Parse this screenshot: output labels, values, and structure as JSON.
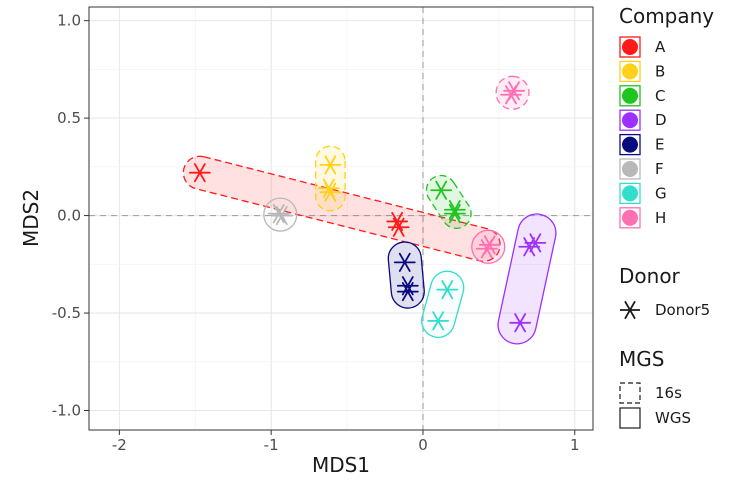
{
  "chart_data": {
    "type": "scatter",
    "title": "",
    "xlabel": "MDS1",
    "ylabel": "MDS2",
    "xlim": [
      -2.2,
      1.12
    ],
    "ylim": [
      -1.1,
      1.07
    ],
    "xticks": [
      -2,
      -1,
      0,
      1
    ],
    "xtick_labels": [
      "-2",
      "-1",
      "0",
      "1"
    ],
    "yticks": [
      -1.0,
      -0.5,
      0.0,
      0.5,
      1.0
    ],
    "ytick_labels": [
      "-1.0",
      "-0.5",
      "0.0",
      "0.5",
      "1.0"
    ],
    "grid": true,
    "reference_lines": {
      "x": 0,
      "y": 0
    },
    "marker": "asterisk",
    "series": [
      {
        "name": "A",
        "color": "#FF1A1A",
        "points": [
          {
            "x": -1.47,
            "y": 0.22,
            "mgs": "16s"
          },
          {
            "x": -0.17,
            "y": -0.03,
            "mgs": "16s"
          },
          {
            "x": -0.16,
            "y": -0.06,
            "mgs": "WGS"
          }
        ]
      },
      {
        "name": "B",
        "color": "#FFD11A",
        "points": [
          {
            "x": -0.61,
            "y": 0.26,
            "mgs": "16s"
          },
          {
            "x": -0.62,
            "y": 0.14,
            "mgs": "16s"
          },
          {
            "x": -0.61,
            "y": 0.12,
            "mgs": "WGS"
          }
        ]
      },
      {
        "name": "C",
        "color": "#1FC41F",
        "points": [
          {
            "x": 0.12,
            "y": 0.13,
            "mgs": "16s"
          },
          {
            "x": 0.21,
            "y": 0.03,
            "mgs": "16s"
          },
          {
            "x": 0.21,
            "y": 0.01,
            "mgs": "WGS"
          }
        ]
      },
      {
        "name": "D",
        "color": "#9B30FF",
        "points": [
          {
            "x": 0.74,
            "y": -0.14,
            "mgs": "WGS"
          },
          {
            "x": 0.7,
            "y": -0.16,
            "mgs": "WGS"
          },
          {
            "x": 0.64,
            "y": -0.55,
            "mgs": "WGS"
          }
        ]
      },
      {
        "name": "E",
        "color": "#0A0A80",
        "points": [
          {
            "x": -0.12,
            "y": -0.24,
            "mgs": "WGS"
          },
          {
            "x": -0.1,
            "y": -0.36,
            "mgs": "WGS"
          },
          {
            "x": -0.1,
            "y": -0.39,
            "mgs": "WGS"
          }
        ]
      },
      {
        "name": "F",
        "color": "#B8B8B8",
        "points": [
          {
            "x": -0.95,
            "y": 0.01,
            "mgs": "WGS"
          },
          {
            "x": -0.93,
            "y": 0.0,
            "mgs": "WGS"
          }
        ]
      },
      {
        "name": "G",
        "color": "#33DDCC",
        "points": [
          {
            "x": 0.16,
            "y": -0.38,
            "mgs": "WGS"
          },
          {
            "x": 0.1,
            "y": -0.54,
            "mgs": "WGS"
          }
        ]
      },
      {
        "name": "H",
        "color": "#FF6FB2",
        "points": [
          {
            "x": 0.6,
            "y": 0.64,
            "mgs": "16s"
          },
          {
            "x": 0.58,
            "y": 0.62,
            "mgs": "16s"
          },
          {
            "x": 0.42,
            "y": -0.17,
            "mgs": "WGS"
          },
          {
            "x": 0.44,
            "y": -0.15,
            "mgs": "WGS"
          }
        ]
      }
    ],
    "hulls": [
      {
        "company": "A",
        "mgs": "16s",
        "fill": true,
        "from": [
          -1.47,
          0.22
        ],
        "to": [
          0.4,
          -0.15
        ],
        "radius": 0.095
      },
      {
        "company": "B",
        "mgs": "16s",
        "fill": true,
        "from": [
          -0.61,
          0.28
        ],
        "to": [
          -0.61,
          0.1
        ],
        "radius": 0.085
      },
      {
        "company": "C",
        "mgs": "16s",
        "fill": true,
        "from": [
          0.12,
          0.13
        ],
        "to": [
          0.22,
          0.01
        ],
        "radius": 0.085
      },
      {
        "company": "D",
        "mgs": "WGS",
        "fill": true,
        "from": [
          0.75,
          -0.09
        ],
        "to": [
          0.62,
          -0.56
        ],
        "radius": 0.11
      },
      {
        "company": "E",
        "mgs": "WGS",
        "fill": true,
        "from": [
          -0.12,
          -0.22
        ],
        "to": [
          -0.1,
          -0.39
        ],
        "radius": 0.095
      },
      {
        "company": "F",
        "mgs": "WGS",
        "fill": false,
        "from": [
          -0.94,
          0.005
        ],
        "to": [
          -0.94,
          0.005
        ],
        "radius": 0.095
      },
      {
        "company": "G",
        "mgs": "WGS",
        "fill": false,
        "from": [
          0.16,
          -0.37
        ],
        "to": [
          0.1,
          -0.54
        ],
        "radius": 0.095
      },
      {
        "company": "H",
        "mgs": "16s",
        "fill": true,
        "from": [
          0.59,
          0.63
        ],
        "to": [
          0.59,
          0.63
        ],
        "radius": 0.095
      },
      {
        "company": "H",
        "mgs": "WGS",
        "fill": true,
        "from": [
          0.43,
          -0.16
        ],
        "to": [
          0.43,
          -0.16
        ],
        "radius": 0.095
      }
    ],
    "legend": {
      "position": "right",
      "company_title": "Company",
      "company_entries": [
        "A",
        "B",
        "C",
        "D",
        "E",
        "F",
        "G",
        "H"
      ],
      "donor_title": "Donor",
      "donor_entries": [
        "Donor5"
      ],
      "mgs_title": "MGS",
      "mgs_entries": [
        "16s",
        "WGS"
      ]
    }
  }
}
